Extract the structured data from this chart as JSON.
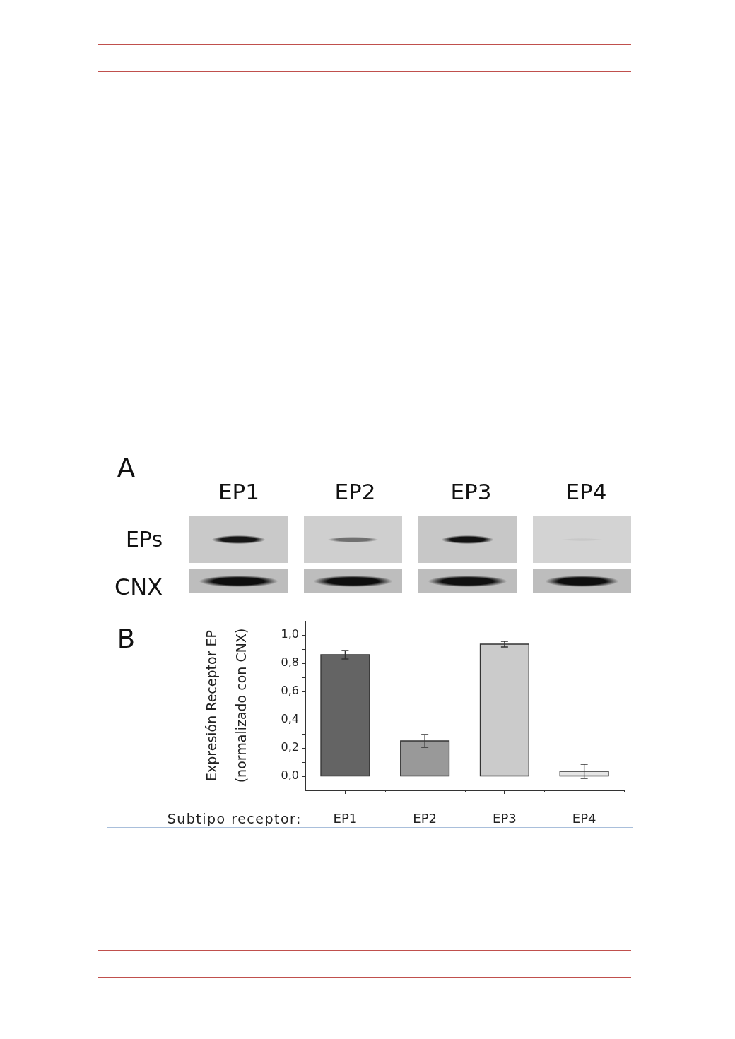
{
  "chart_data": {
    "type": "bar",
    "categories": [
      "EP1",
      "EP2",
      "EP3",
      "EP4"
    ],
    "values": [
      0.86,
      0.25,
      0.935,
      0.035
    ],
    "errors": [
      0.03,
      0.045,
      0.02,
      0.05
    ],
    "colors": [
      "#646464",
      "#999999",
      "#cbcbcb",
      "#e6e6e6"
    ],
    "xlabel": "Subtipo receptor:",
    "ylabel": "Expresión Receptor EP\n(normalizado con CNX)",
    "ylim": [
      -0.1,
      1.1
    ],
    "yticks": [
      {
        "value": 0,
        "label": "0,0"
      },
      {
        "value": 0.1,
        "label": null
      },
      {
        "value": 0.2,
        "label": "0,2"
      },
      {
        "value": 0.3,
        "label": null
      },
      {
        "value": 0.4,
        "label": "0,4"
      },
      {
        "value": 0.5,
        "label": null
      },
      {
        "value": 0.6,
        "label": "0,6"
      },
      {
        "value": 0.7,
        "label": null
      },
      {
        "value": 0.8,
        "label": "0,8"
      },
      {
        "value": 0.9,
        "label": null
      },
      {
        "value": 1,
        "label": "1,0"
      }
    ],
    "annotations": [
      "A",
      "EP1",
      "EP2",
      "EP3",
      "EP4",
      "EPs",
      "CNX",
      "B"
    ]
  }
}
